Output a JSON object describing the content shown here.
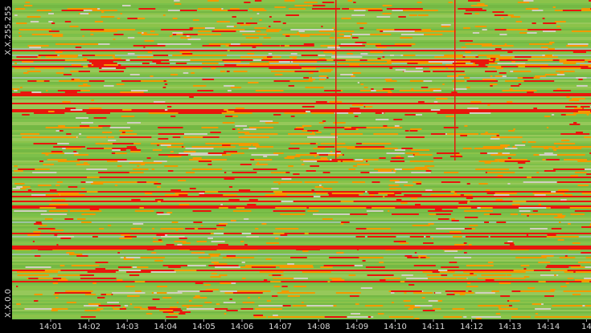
{
  "y_axis": {
    "top_label": "X.X.255.255",
    "bottom_label": "X.X.0.0"
  },
  "x_axis": {
    "labels": [
      "14:01",
      "14:02",
      "14:03",
      "14:04",
      "14:05",
      "14:06",
      "14:07",
      "14:08",
      "14:09",
      "14:10",
      "14:11",
      "14:12",
      "14:13",
      "14:14",
      "14"
    ]
  }
}
